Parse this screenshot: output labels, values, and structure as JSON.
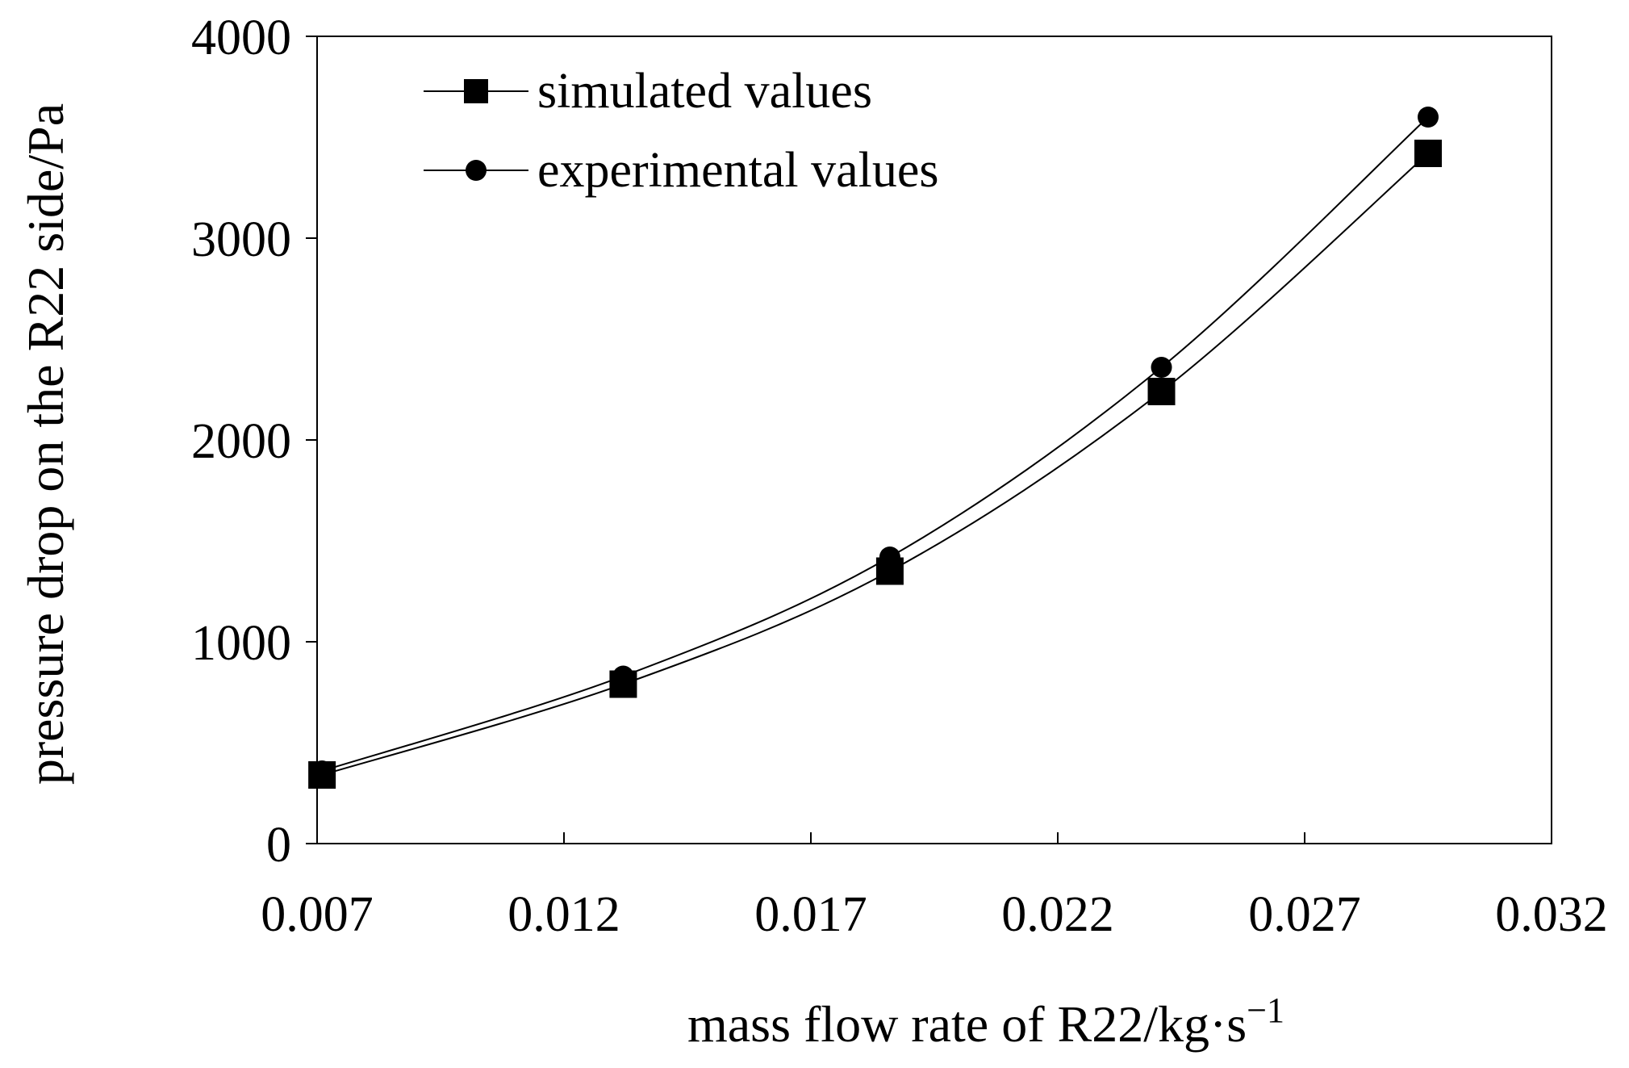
{
  "chart_data": {
    "type": "line",
    "title": "",
    "xlabel": "mass flow rate of R22/kg·s",
    "xlabel_superscript": "−1",
    "ylabel": "pressure drop on the R22 side/Pa",
    "xlim": [
      0.007,
      0.032
    ],
    "ylim": [
      0,
      4000
    ],
    "xticks": [
      "0.007",
      "0.012",
      "0.017",
      "0.022",
      "0.027",
      "0.032"
    ],
    "yticks": [
      "0",
      "1000",
      "2000",
      "3000",
      "4000"
    ],
    "grid": false,
    "legend_position": "top-left",
    "series": [
      {
        "name": "simulated values",
        "marker": "square",
        "color": "#000000",
        "x": [
          0.0071,
          0.0132,
          0.0186,
          0.0241,
          0.0295
        ],
        "y": [
          340,
          790,
          1350,
          2240,
          3420
        ]
      },
      {
        "name": "experimental values",
        "marker": "circle",
        "color": "#000000",
        "x": [
          0.0071,
          0.0132,
          0.0186,
          0.0241,
          0.0295
        ],
        "y": [
          360,
          830,
          1420,
          2360,
          3600
        ]
      }
    ]
  }
}
